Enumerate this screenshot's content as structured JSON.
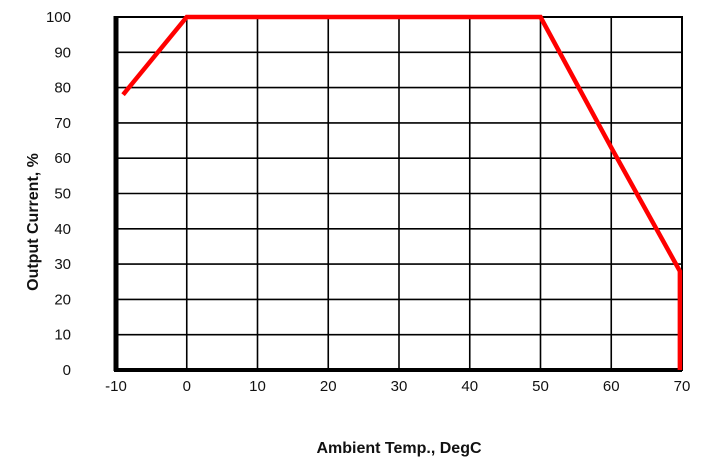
{
  "chart_data": {
    "type": "line",
    "title": "",
    "xlabel": "Ambient Temp., DegC",
    "ylabel": "Output Current, %",
    "xlim": [
      -10,
      70
    ],
    "ylim": [
      0,
      100
    ],
    "x_ticks": [
      -10,
      0,
      10,
      20,
      30,
      40,
      50,
      60,
      70
    ],
    "y_ticks": [
      0,
      10,
      20,
      30,
      40,
      50,
      60,
      70,
      80,
      90,
      100
    ],
    "grid": true,
    "series": [
      {
        "color": "#ff0000",
        "points": [
          [
            -9,
            78
          ],
          [
            0,
            100
          ],
          [
            50,
            100
          ],
          [
            60,
            63
          ],
          [
            69.7,
            28
          ],
          [
            69.7,
            0
          ]
        ]
      }
    ]
  }
}
